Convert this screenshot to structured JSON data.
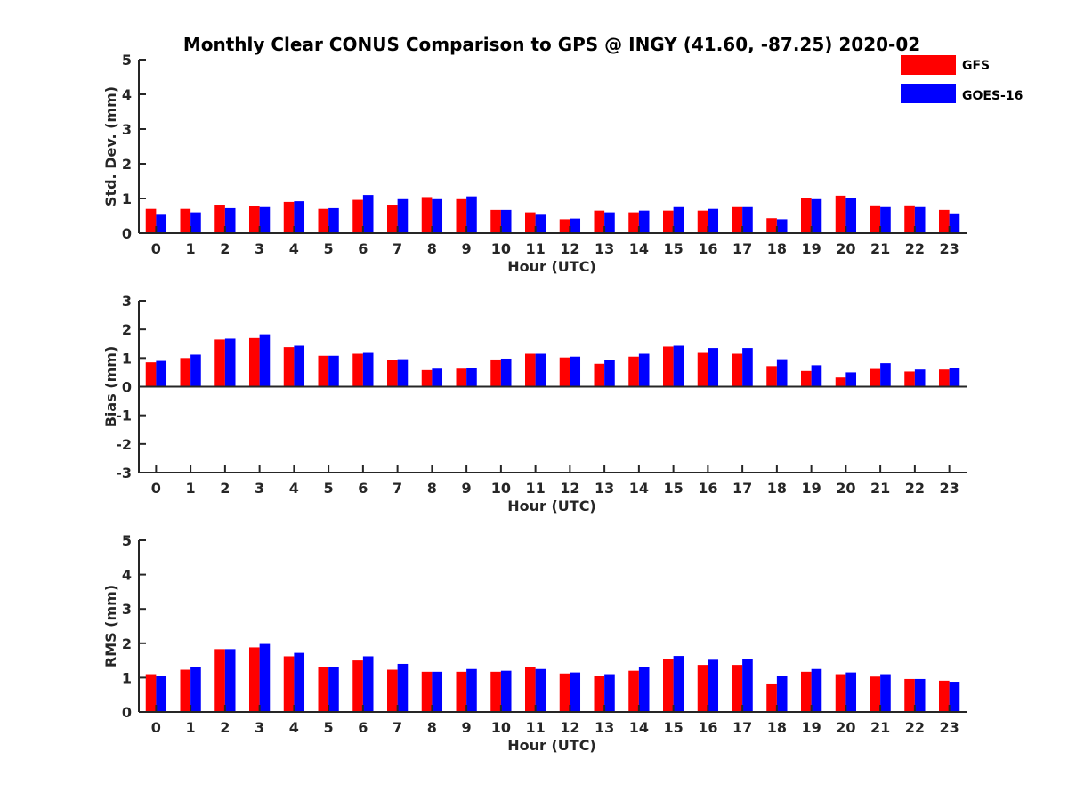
{
  "title": "Monthly Clear CONUS Comparison to GPS @ INGY (41.60, -87.25) 2020-02",
  "legend": {
    "placement": "top-right",
    "items": [
      {
        "label": "GFS",
        "color": "#ff0000"
      },
      {
        "label": "GOES-16",
        "color": "#0000ff"
      }
    ]
  },
  "chart_data": [
    {
      "type": "bar",
      "xlabel": "Hour (UTC)",
      "ylabel": "Std. Dev. (mm)",
      "ylim": [
        0,
        5
      ],
      "yticks": [
        "0",
        "1",
        "2",
        "3",
        "4",
        "5"
      ],
      "categories": [
        "0",
        "1",
        "2",
        "3",
        "4",
        "5",
        "6",
        "7",
        "8",
        "9",
        "10",
        "11",
        "12",
        "13",
        "14",
        "15",
        "16",
        "17",
        "18",
        "19",
        "20",
        "21",
        "22",
        "23"
      ],
      "series": [
        {
          "name": "GFS",
          "color": "#ff0000",
          "values": [
            0.7,
            0.7,
            0.82,
            0.78,
            0.9,
            0.7,
            0.96,
            0.82,
            1.04,
            0.98,
            0.67,
            0.6,
            0.4,
            0.65,
            0.6,
            0.65,
            0.65,
            0.75,
            0.43,
            1.0,
            1.08,
            0.8,
            0.8,
            0.67
          ]
        },
        {
          "name": "GOES-16",
          "color": "#0000ff",
          "values": [
            0.53,
            0.6,
            0.72,
            0.75,
            0.92,
            0.72,
            1.1,
            0.98,
            0.98,
            1.06,
            0.67,
            0.53,
            0.42,
            0.6,
            0.65,
            0.75,
            0.7,
            0.75,
            0.4,
            0.98,
            1.0,
            0.75,
            0.75,
            0.57
          ]
        }
      ]
    },
    {
      "type": "bar",
      "xlabel": "Hour (UTC)",
      "ylabel": "Bias (mm)",
      "ylim": [
        -3,
        3
      ],
      "yticks": [
        "-3",
        "-2",
        "-1",
        "0",
        "1",
        "2",
        "3"
      ],
      "categories": [
        "0",
        "1",
        "2",
        "3",
        "4",
        "5",
        "6",
        "7",
        "8",
        "9",
        "10",
        "11",
        "12",
        "13",
        "14",
        "15",
        "16",
        "17",
        "18",
        "19",
        "20",
        "21",
        "22",
        "23"
      ],
      "series": [
        {
          "name": "GFS",
          "color": "#ff0000",
          "values": [
            0.85,
            1.0,
            1.65,
            1.7,
            1.38,
            1.08,
            1.15,
            0.92,
            0.58,
            0.63,
            0.95,
            1.15,
            1.02,
            0.8,
            1.05,
            1.4,
            1.18,
            1.15,
            0.72,
            0.55,
            0.32,
            0.62,
            0.53,
            0.6
          ]
        },
        {
          "name": "GOES-16",
          "color": "#0000ff",
          "values": [
            0.9,
            1.12,
            1.68,
            1.83,
            1.43,
            1.08,
            1.18,
            0.96,
            0.63,
            0.65,
            0.98,
            1.15,
            1.05,
            0.93,
            1.15,
            1.43,
            1.35,
            1.35,
            0.96,
            0.75,
            0.5,
            0.82,
            0.6,
            0.65
          ]
        }
      ]
    },
    {
      "type": "bar",
      "xlabel": "Hour (UTC)",
      "ylabel": "RMS (mm)",
      "ylim": [
        0,
        5
      ],
      "yticks": [
        "0",
        "1",
        "2",
        "3",
        "4",
        "5"
      ],
      "categories": [
        "0",
        "1",
        "2",
        "3",
        "4",
        "5",
        "6",
        "7",
        "8",
        "9",
        "10",
        "11",
        "12",
        "13",
        "14",
        "15",
        "16",
        "17",
        "18",
        "19",
        "20",
        "21",
        "22",
        "23"
      ],
      "series": [
        {
          "name": "GFS",
          "color": "#ff0000",
          "values": [
            1.1,
            1.23,
            1.83,
            1.88,
            1.62,
            1.32,
            1.5,
            1.23,
            1.17,
            1.17,
            1.17,
            1.3,
            1.12,
            1.06,
            1.2,
            1.55,
            1.37,
            1.37,
            0.83,
            1.17,
            1.1,
            1.03,
            0.96,
            0.91
          ]
        },
        {
          "name": "GOES-16",
          "color": "#0000ff",
          "values": [
            1.05,
            1.3,
            1.83,
            1.98,
            1.72,
            1.32,
            1.62,
            1.4,
            1.17,
            1.25,
            1.2,
            1.25,
            1.15,
            1.1,
            1.32,
            1.63,
            1.52,
            1.55,
            1.06,
            1.25,
            1.15,
            1.1,
            0.96,
            0.88
          ]
        }
      ]
    }
  ]
}
